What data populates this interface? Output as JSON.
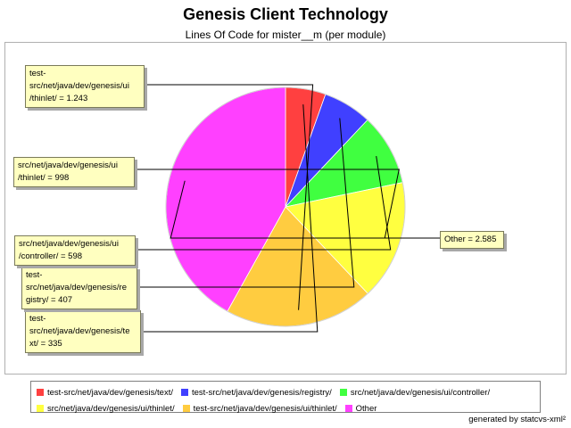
{
  "chart_data": {
    "type": "pie",
    "title": "Genesis Client Technology",
    "subtitle": "Lines Of Code for mister__m (per module)",
    "slices": [
      {
        "label": "test-src/net/java/dev/genesis/text/",
        "callout": "test-\nsrc/net/java/dev/genesis/te\nxt/ = 335",
        "value": 335,
        "color": "#ff4040"
      },
      {
        "label": "test-src/net/java/dev/genesis/registry/",
        "callout": "test-\nsrc/net/java/dev/genesis/re\ngistry/ = 407",
        "value": 407,
        "color": "#4040ff"
      },
      {
        "label": "src/net/java/dev/genesis/ui/controller/",
        "callout": "src/net/java/dev/genesis/ui\n/controller/ = 598",
        "value": 598,
        "color": "#40ff40"
      },
      {
        "label": "src/net/java/dev/genesis/ui/thinlet/",
        "callout": "src/net/java/dev/genesis/ui\n/thinlet/ = 998",
        "value": 998,
        "color": "#ffff40"
      },
      {
        "label": "test-src/net/java/dev/genesis/ui/thinlet/",
        "callout": "test-\nsrc/net/java/dev/genesis/ui\n/thinlet/ = 1.243",
        "value": 1243,
        "color": "#ffcc40"
      },
      {
        "label": "Other",
        "callout": "Other = 2.585",
        "value": 2585,
        "color": "#ff40ff"
      }
    ],
    "legend_position": "bottom"
  },
  "footer": "generated by statcvs-xml²"
}
